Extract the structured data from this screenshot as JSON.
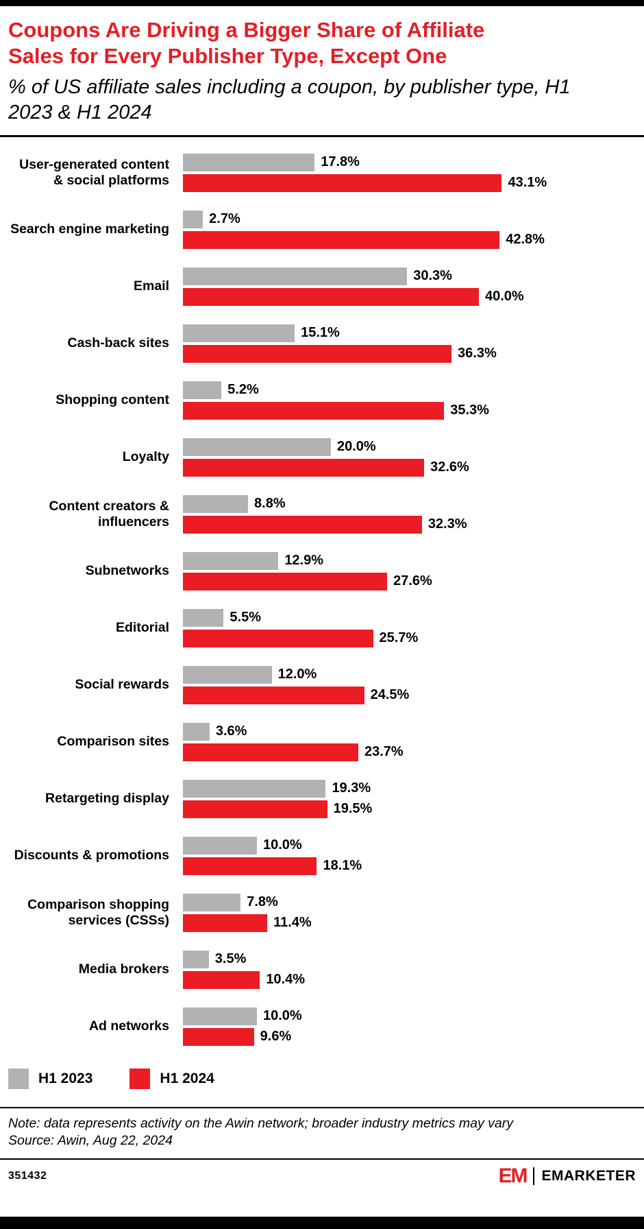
{
  "header": {
    "title": "Coupons Are Driving a Bigger Share of Affiliate Sales for Every Publisher Type, Except One",
    "subtitle": "% of US affiliate sales including a coupon, by publisher type, H1 2023 & H1 2024"
  },
  "colors": {
    "accent_red": "#ec1c24",
    "bar_gray": "#b2b2b2",
    "title_red": "#e31f26"
  },
  "chart_data": {
    "type": "bar",
    "orientation": "horizontal",
    "title": "Coupons Are Driving a Bigger Share of Affiliate Sales for Every Publisher Type, Except One",
    "subtitle": "% of US affiliate sales including a coupon, by publisher type, H1 2023 & H1 2024",
    "value_suffix": "%",
    "xlim": [
      0,
      45
    ],
    "grid": false,
    "legend_position": "bottom-left",
    "categories": [
      "User-generated content & social platforms",
      "Search engine marketing",
      "Email",
      "Cash-back sites",
      "Shopping content",
      "Loyalty",
      "Content creators & influencers",
      "Subnetworks",
      "Editorial",
      "Social rewards",
      "Comparison sites",
      "Retargeting display",
      "Discounts & promotions",
      "Comparison shopping services (CSSs)",
      "Media brokers",
      "Ad networks"
    ],
    "series": [
      {
        "name": "H1 2023",
        "color": "#b2b2b2",
        "values": [
          17.8,
          2.7,
          30.3,
          15.1,
          5.2,
          20.0,
          8.8,
          12.9,
          5.5,
          12.0,
          3.6,
          19.3,
          10.0,
          7.8,
          3.5,
          10.0
        ]
      },
      {
        "name": "H1 2024",
        "color": "#ec1c24",
        "values": [
          43.1,
          42.8,
          40.0,
          36.3,
          35.3,
          32.6,
          32.3,
          27.6,
          25.7,
          24.5,
          23.7,
          19.5,
          18.1,
          11.4,
          10.4,
          9.6
        ]
      }
    ]
  },
  "note": "Note: data represents activity on the Awin network; broader industry metrics may vary",
  "source": "Source: Awin, Aug 22, 2024",
  "footer": {
    "chart_id": "351432",
    "logo_mark": "EM",
    "brand_name": "EMARKETER"
  }
}
